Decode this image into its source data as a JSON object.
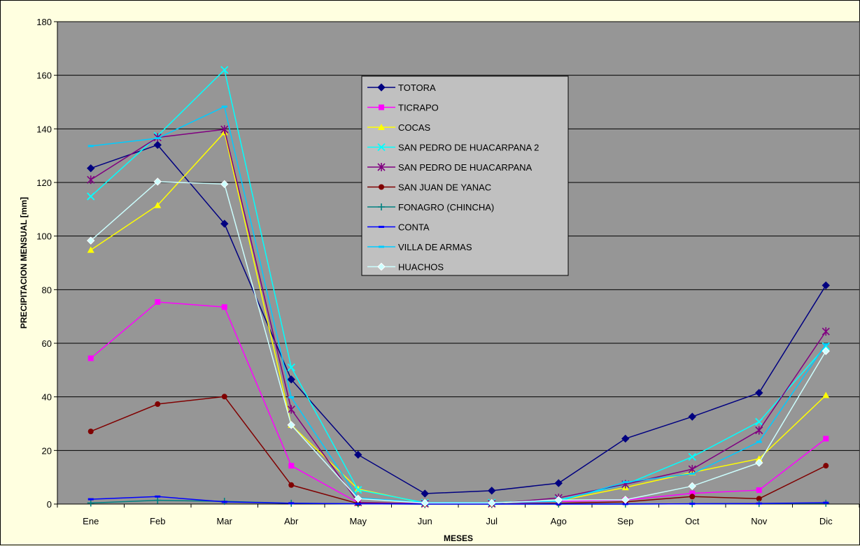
{
  "chart_data": {
    "type": "line",
    "title": "",
    "xlabel": "MESES",
    "ylabel": "PRECIPITACION MENSUAL [mm]",
    "ylim": [
      0,
      180
    ],
    "ytick_step": 20,
    "grid": true,
    "legend_placement": "top-center",
    "plot_background": "#969696",
    "categories": [
      "Ene",
      "Feb",
      "Mar",
      "Abr",
      "May",
      "Jun",
      "Jul",
      "Ago",
      "Sep",
      "Oct",
      "Nov",
      "Dic"
    ],
    "series": [
      {
        "name": "TOTORA",
        "color": "#000080",
        "marker": "diamond",
        "values": [
          125.3,
          134.0,
          104.6,
          46.5,
          18.4,
          3.9,
          5.0,
          7.8,
          24.4,
          32.6,
          41.5,
          81.6
        ]
      },
      {
        "name": "TICRAPO",
        "color": "#ff00ff",
        "marker": "square",
        "values": [
          54.4,
          75.4,
          73.5,
          14.3,
          0.5,
          0.2,
          0.2,
          1.0,
          1.5,
          4.0,
          5.2,
          24.4
        ]
      },
      {
        "name": "COCAS",
        "color": "#ffff00",
        "marker": "triangle",
        "values": [
          94.8,
          111.5,
          138.7,
          29.5,
          5.6,
          0.3,
          0.3,
          1.2,
          6.2,
          11.8,
          16.9,
          40.6
        ]
      },
      {
        "name": "SAN PEDRO DE HUACARPANA 2",
        "color": "#00ffff",
        "marker": "x",
        "values": [
          114.8,
          137.4,
          162.0,
          51.0,
          5.3,
          0.5,
          0.5,
          1.5,
          7.3,
          17.6,
          30.7,
          58.9
        ]
      },
      {
        "name": "SAN PEDRO DE HUACARPANA",
        "color": "#800080",
        "marker": "star",
        "values": [
          121.0,
          136.8,
          139.8,
          35.3,
          0.6,
          0.1,
          0.1,
          2.3,
          7.4,
          13.0,
          27.5,
          64.4
        ]
      },
      {
        "name": "SAN JUAN DE YANAC",
        "color": "#800000",
        "marker": "circle",
        "values": [
          27.1,
          37.3,
          40.1,
          7.1,
          0.2,
          0.0,
          0.0,
          0.3,
          0.8,
          2.8,
          2.0,
          14.3
        ]
      },
      {
        "name": "FONAGRO (CHINCHA)",
        "color": "#008080",
        "marker": "plus",
        "values": [
          0.4,
          1.4,
          1.0,
          0.3,
          0.1,
          0.0,
          0.0,
          0.0,
          0.0,
          0.1,
          0.2,
          0.3
        ]
      },
      {
        "name": "CONTA",
        "color": "#0000ff",
        "marker": "dash",
        "values": [
          1.8,
          2.8,
          0.8,
          0.3,
          0.1,
          0.0,
          0.0,
          0.0,
          0.0,
          0.1,
          0.2,
          0.5
        ]
      },
      {
        "name": "VILLA DE ARMAS",
        "color": "#00ccff",
        "marker": "dash",
        "values": [
          133.6,
          136.5,
          148.3,
          39.8,
          2.3,
          0.6,
          0.5,
          1.0,
          8.2,
          11.3,
          23.2,
          59.6
        ]
      },
      {
        "name": "HUACHOS",
        "color": "#ccffff",
        "marker": "diamond",
        "values": [
          98.3,
          120.3,
          119.4,
          29.5,
          2.0,
          0.4,
          0.4,
          1.5,
          1.6,
          6.7,
          15.4,
          57.1
        ]
      }
    ]
  }
}
